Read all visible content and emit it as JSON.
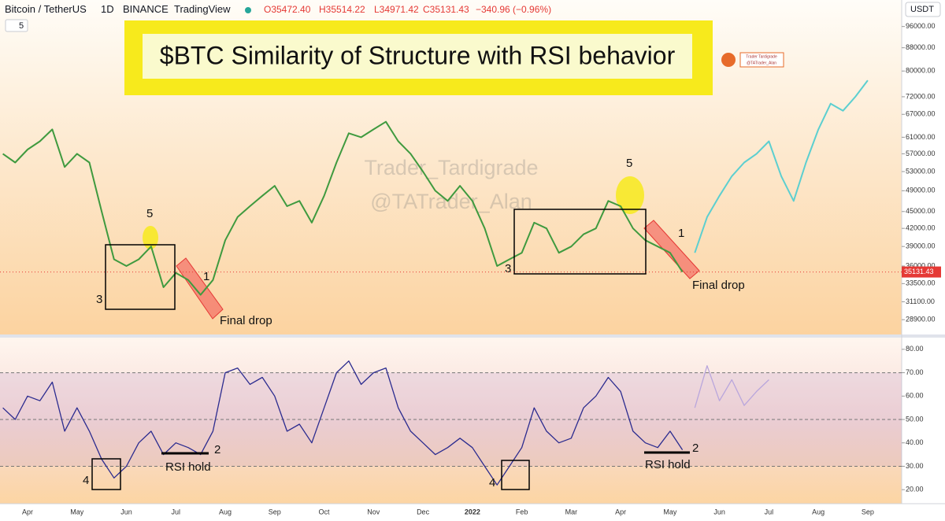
{
  "header": {
    "symbol": "Bitcoin / TetherUS",
    "interval": "1D",
    "exchange": "BINANCE",
    "source": "TradingView",
    "open": "O35472.40",
    "high": "H35514.22",
    "low": "L34971.42",
    "close": "C35131.43",
    "change": "−340.96 (−0.96%)",
    "indicator": "5",
    "currency": "USDT"
  },
  "chart_data": {
    "type": "line",
    "title": "$BTC Similarity of Structure with RSI behavior",
    "categories": [
      null,
      null,
      "Apr",
      null,
      null,
      null,
      "May",
      null,
      null,
      null,
      "Jun",
      null,
      null,
      null,
      "Jul",
      null,
      null,
      null,
      "Aug",
      null,
      null,
      null,
      "Sep",
      null,
      null,
      null,
      "Oct",
      null,
      null,
      null,
      "Nov",
      null,
      null,
      null,
      "Dec",
      null,
      null,
      null,
      "2022",
      null,
      null,
      null,
      "Feb",
      null,
      null,
      null,
      "Mar",
      null,
      null,
      null,
      "Apr",
      null,
      null,
      null,
      "May",
      null,
      null,
      null,
      "Jun",
      null,
      null,
      null,
      "Jul",
      null,
      null,
      null,
      "Aug",
      null,
      null,
      null,
      "Sep",
      null,
      null
    ],
    "series": [
      {
        "color": "#3f9a3f",
        "values": [
          57000,
          55000,
          58000,
          60000,
          63000,
          54000,
          57000,
          55000,
          45000,
          37000,
          36000,
          37000,
          39000,
          33000,
          35000,
          34000,
          32000,
          34000,
          40000,
          44000,
          46000,
          48000,
          50000,
          46000,
          47000,
          43000,
          48000,
          55000,
          62000,
          61000,
          63000,
          65000,
          60000,
          57000,
          53000,
          49000,
          47000,
          50000,
          47000,
          42000,
          36000,
          37000,
          38000,
          43000,
          42000,
          38000,
          39000,
          41000,
          42000,
          47000,
          46000,
          42000,
          40000,
          39000,
          38000,
          35131.43,
          null,
          null,
          null,
          null,
          null,
          null,
          null,
          null,
          null,
          null,
          null,
          null,
          null,
          null,
          null,
          null,
          null
        ]
      },
      {
        "color": "#5ccfd0",
        "values": [
          null,
          null,
          null,
          null,
          null,
          null,
          null,
          null,
          null,
          null,
          null,
          null,
          null,
          null,
          null,
          null,
          null,
          null,
          null,
          null,
          null,
          null,
          null,
          null,
          null,
          null,
          null,
          null,
          null,
          null,
          null,
          null,
          null,
          null,
          null,
          null,
          null,
          null,
          null,
          null,
          null,
          null,
          null,
          null,
          null,
          null,
          null,
          null,
          null,
          null,
          null,
          null,
          null,
          null,
          null,
          null,
          38000,
          44000,
          48000,
          52000,
          55000,
          57000,
          60000,
          52000,
          47000,
          55000,
          63000,
          70000,
          68000,
          72000,
          77000,
          null,
          null
        ]
      },
      {
        "color": "#2b2b8f",
        "axis": "y2",
        "values": [
          55,
          50,
          60,
          58,
          66,
          45,
          55,
          45,
          33,
          25,
          30,
          40,
          45,
          35,
          40,
          38,
          35,
          45,
          70,
          72,
          65,
          68,
          60,
          45,
          48,
          40,
          55,
          70,
          75,
          65,
          70,
          72,
          55,
          45,
          40,
          35,
          38,
          42,
          38,
          30,
          22,
          30,
          38,
          55,
          45,
          40,
          42,
          55,
          60,
          68,
          62,
          45,
          40,
          38,
          45,
          37,
          null,
          null,
          null,
          null,
          null,
          null,
          null,
          null,
          null,
          null,
          null,
          null,
          null,
          null,
          null,
          null,
          null
        ]
      },
      {
        "color": "#b9a6dc",
        "axis": "y2",
        "values": [
          null,
          null,
          null,
          null,
          null,
          null,
          null,
          null,
          null,
          null,
          null,
          null,
          null,
          null,
          null,
          null,
          null,
          null,
          null,
          null,
          null,
          null,
          null,
          null,
          null,
          null,
          null,
          null,
          null,
          null,
          null,
          null,
          null,
          null,
          null,
          null,
          null,
          null,
          null,
          null,
          null,
          null,
          null,
          null,
          null,
          null,
          null,
          null,
          null,
          null,
          null,
          null,
          null,
          null,
          null,
          null,
          55,
          73,
          58,
          67,
          56,
          62,
          67,
          null,
          null,
          null,
          null,
          null,
          null,
          null,
          null,
          null,
          null
        ]
      }
    ],
    "log_scale": true,
    "ylim": [
      27200,
      107000
    ],
    "yticks": [
      {
        "value": 96000,
        "label": "96000.00"
      },
      {
        "value": 88000,
        "label": "88000.00"
      },
      {
        "value": 80000,
        "label": "80000.00"
      },
      {
        "value": 72000,
        "label": "72000.00"
      },
      {
        "value": 67000,
        "label": "67000.00"
      },
      {
        "value": 61000,
        "label": "61000.00"
      },
      {
        "value": 57000,
        "label": "57000.00"
      },
      {
        "value": 53000,
        "label": "53000.00"
      },
      {
        "value": 49000,
        "label": "49000.00"
      },
      {
        "value": 45000,
        "label": "45000.00"
      },
      {
        "value": 42000,
        "label": "42000.00"
      },
      {
        "value": 39000,
        "label": "39000.00"
      },
      {
        "value": 36000,
        "label": "36000.00"
      },
      {
        "value": 33500,
        "label": "33500.00"
      },
      {
        "value": 31100,
        "label": "31100.00"
      },
      {
        "value": 28900,
        "label": "28900.00"
      }
    ],
    "last_value": 35131.43,
    "y2lim": [
      14,
      85
    ],
    "y2ticks": [
      {
        "value": 80,
        "label": "80.00"
      },
      {
        "value": 70,
        "label": "70.00"
      },
      {
        "value": 60,
        "label": "60.00"
      },
      {
        "value": 50,
        "label": "50.00"
      },
      {
        "value": 40,
        "label": "40.00"
      },
      {
        "value": 30,
        "label": "30.00"
      },
      {
        "value": 20,
        "label": "20.00"
      }
    ],
    "y2_levels": [
      70,
      50,
      30
    ],
    "grid": false
  },
  "annotations": {
    "watermark": [
      "Trader_Tardigrade",
      "@TATrader_Alan"
    ],
    "logo": [
      "Trader Tardigrade",
      "@TATrader_Alan"
    ],
    "price_labels": [
      "5",
      "3",
      "1",
      "Final drop",
      "5",
      "3",
      "1",
      "Final drop"
    ],
    "rsi_labels": [
      "4",
      "2",
      "RSI hold",
      "4",
      "2",
      "RSI hold"
    ]
  }
}
